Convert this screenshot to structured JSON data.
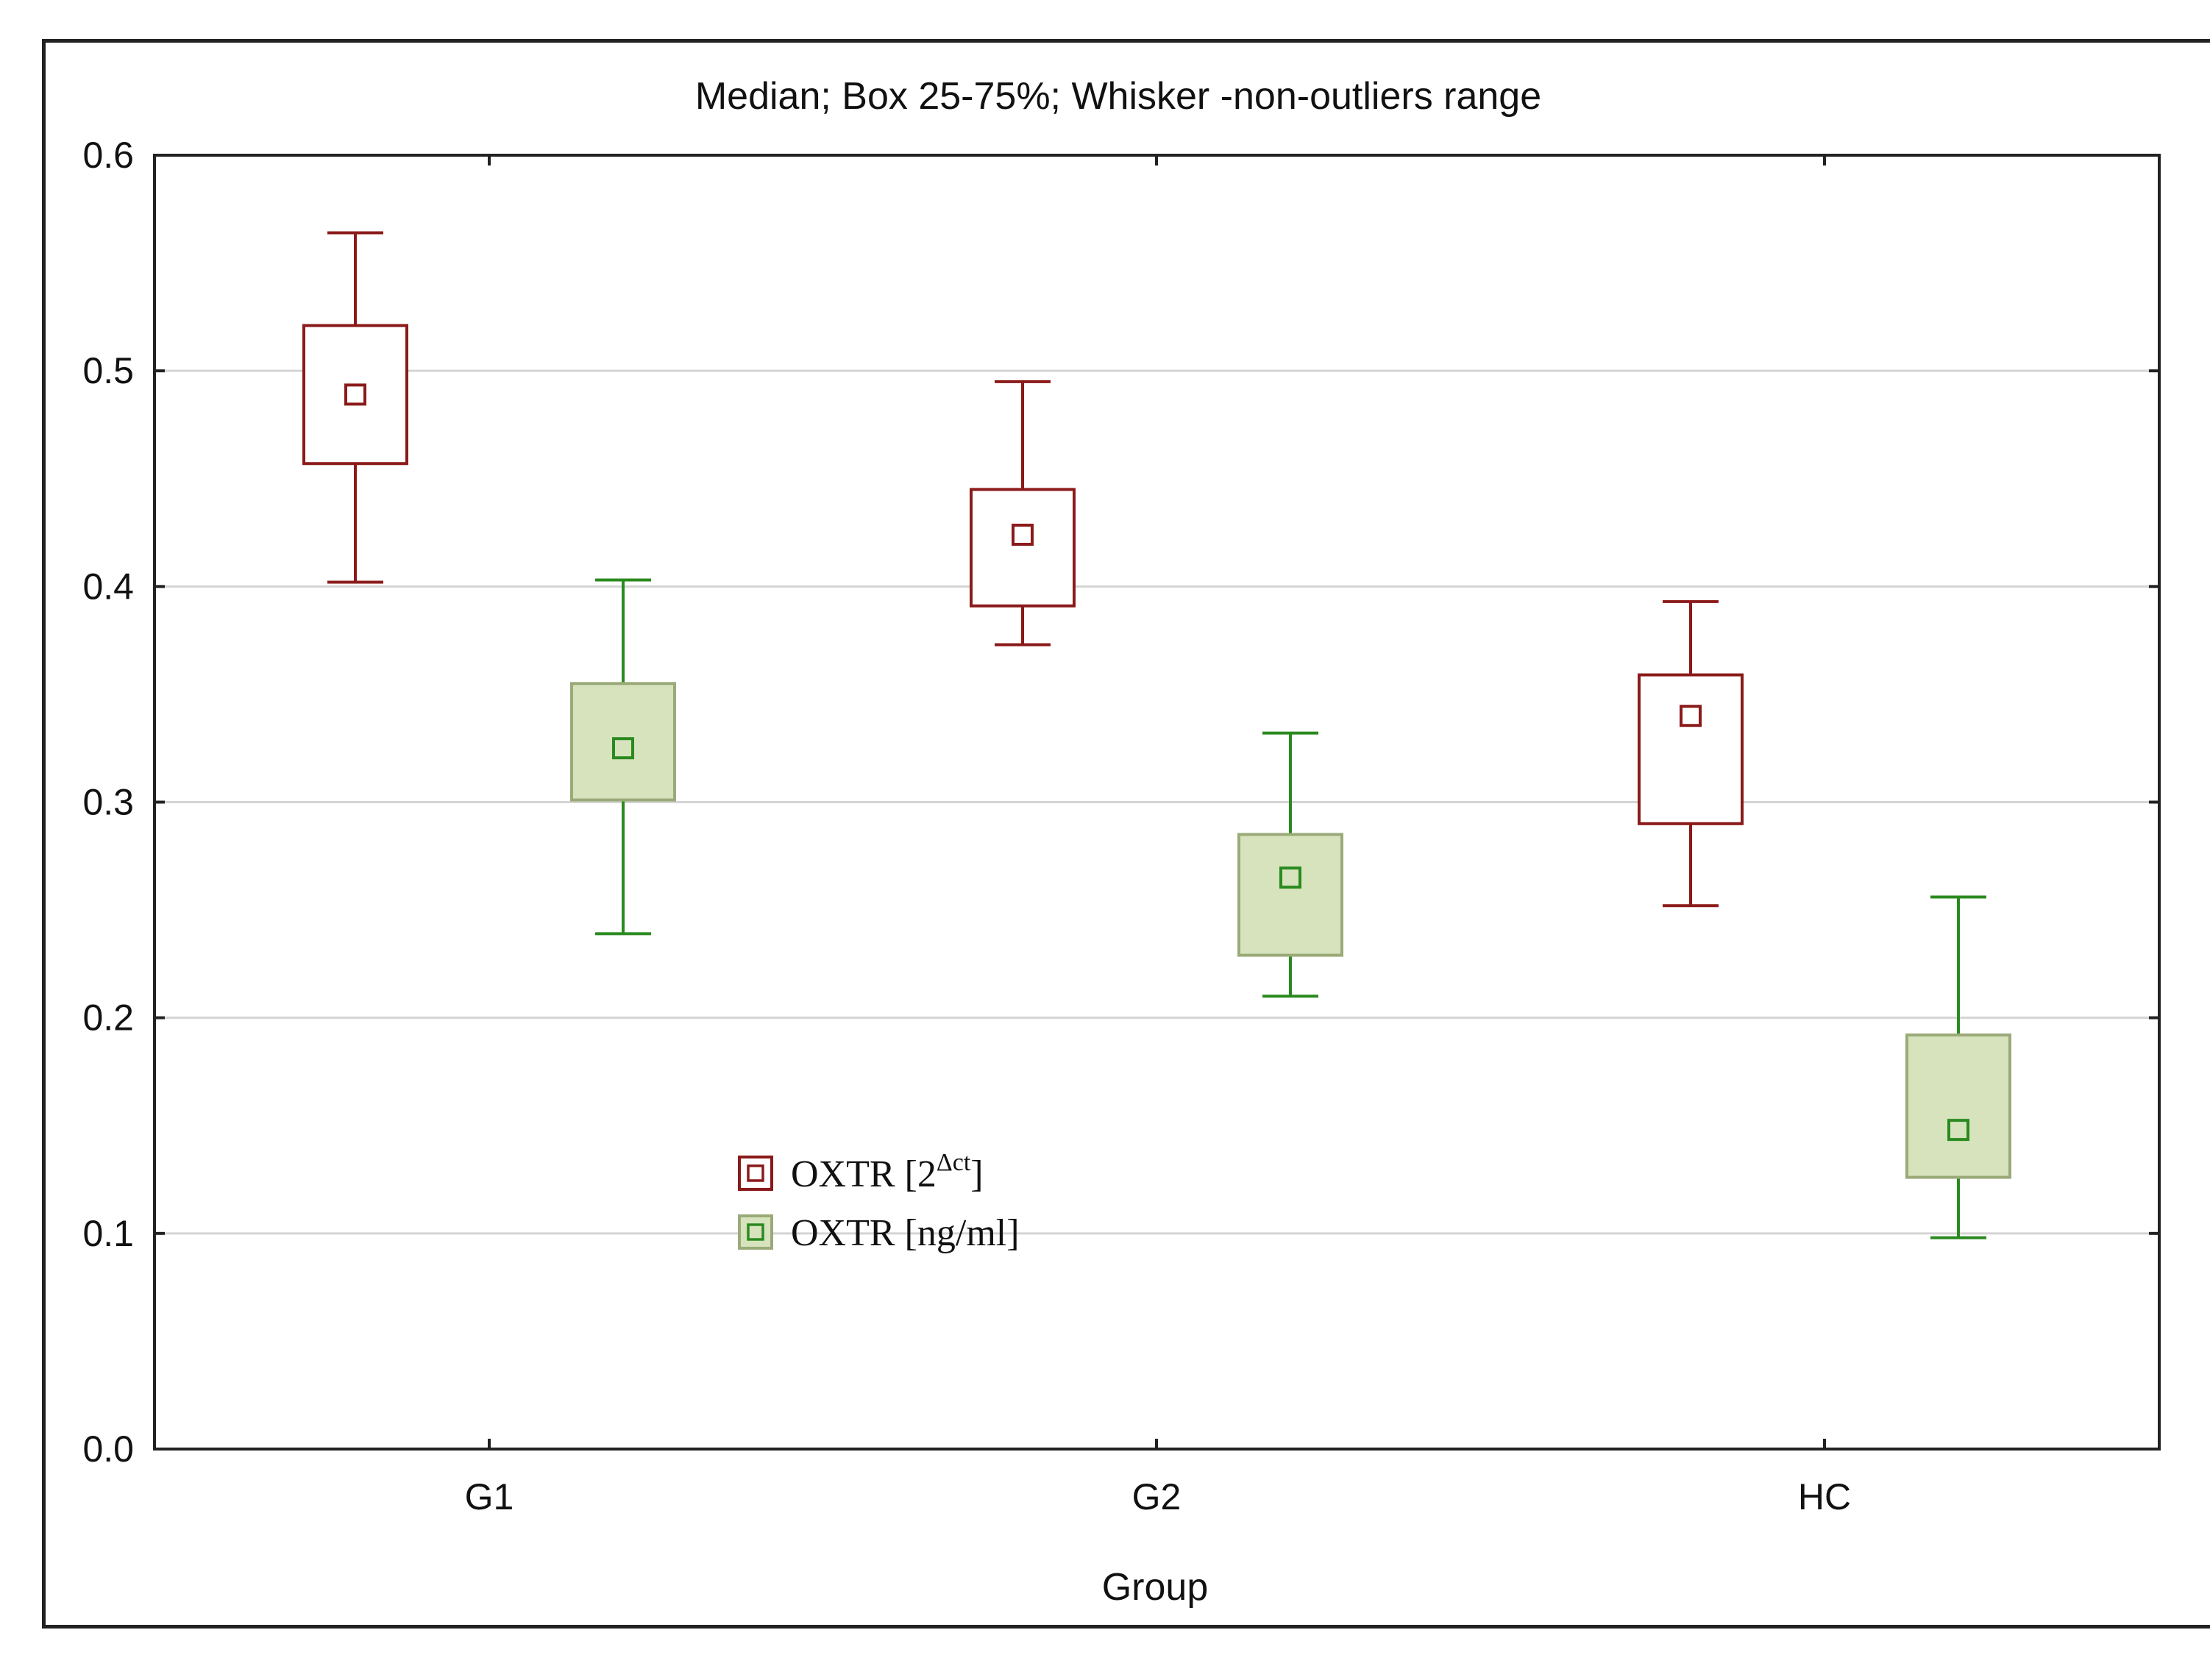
{
  "chart_data": {
    "type": "box",
    "title": "Median; Box 25-75%; Whisker -non-outliers range",
    "xlabel": "Group",
    "ylabel": "",
    "categories": [
      "G1",
      "G2",
      "HC"
    ],
    "ylim": [
      0.0,
      0.6
    ],
    "yticks": [
      "0.0",
      "0.1",
      "0.2",
      "0.3",
      "0.4",
      "0.5",
      "0.6"
    ],
    "ytick_values": [
      0.0,
      0.1,
      0.2,
      0.3,
      0.4,
      0.5,
      0.6
    ],
    "grid": true,
    "legend_position": "lower-center",
    "series": [
      {
        "name": "OXTR [2^Δct]",
        "legend_base": "OXTR [2",
        "legend_sup": "Δct",
        "legend_close": "]",
        "color": "#8b1a1a",
        "fill": "#ffffff",
        "boxes": [
          {
            "category": "G1",
            "whisker_low": 0.402,
            "q1": 0.457,
            "median": 0.489,
            "q3": 0.521,
            "whisker_high": 0.564
          },
          {
            "category": "G2",
            "whisker_low": 0.373,
            "q1": 0.391,
            "median": 0.424,
            "q3": 0.445,
            "whisker_high": 0.495
          },
          {
            "category": "HC",
            "whisker_low": 0.252,
            "q1": 0.29,
            "median": 0.34,
            "q3": 0.359,
            "whisker_high": 0.393
          }
        ]
      },
      {
        "name": "OXTR [ng/ml]",
        "legend_label": "OXTR [ng/ml]",
        "color": "#2a8a1f",
        "fill": "#d6e3bd",
        "box_stroke": "#9aaa78",
        "boxes": [
          {
            "category": "G1",
            "whisker_low": 0.239,
            "q1": 0.301,
            "median": 0.325,
            "q3": 0.355,
            "whisker_high": 0.403
          },
          {
            "category": "G2",
            "whisker_low": 0.21,
            "q1": 0.229,
            "median": 0.265,
            "q3": 0.285,
            "whisker_high": 0.332
          },
          {
            "category": "HC",
            "whisker_low": 0.098,
            "q1": 0.126,
            "median": 0.148,
            "q3": 0.192,
            "whisker_high": 0.256
          }
        ]
      }
    ]
  }
}
